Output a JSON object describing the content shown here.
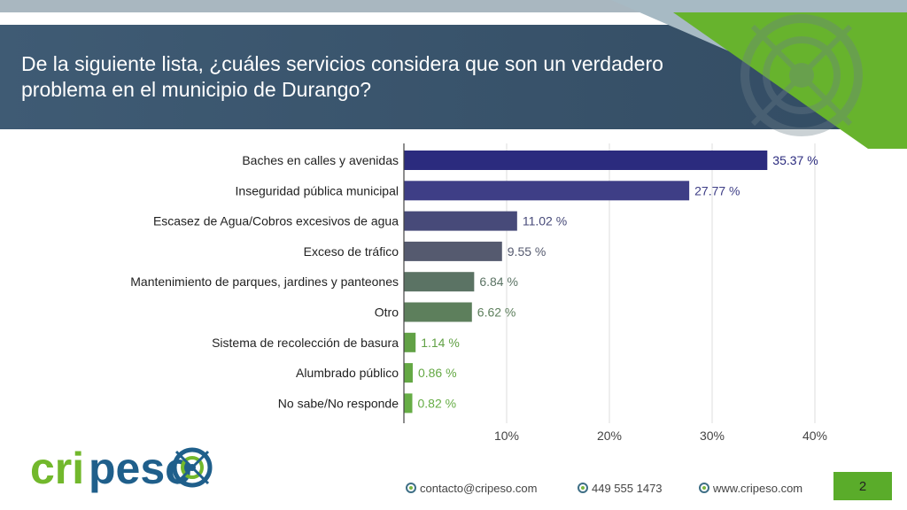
{
  "slide": {
    "title": "De la siguiente lista, ¿cuáles servicios considera que son un verdadero problema en el municipio de Durango?",
    "page_number": "2"
  },
  "footer": {
    "email": "contacto@cripeso.com",
    "phone": "449 555 1473",
    "website": "www.cripeso.com"
  },
  "logo": {
    "text_green": "cri",
    "text_blue": "peso",
    "icon": "target-crosshair-icon"
  },
  "colors": {
    "title_band": "#3a556d",
    "accent_green": "#5aac2a",
    "brand_blue": "#1f5f8b"
  },
  "chart_data": {
    "type": "bar",
    "orientation": "horizontal",
    "categories": [
      "Baches en calles y avenidas",
      "Inseguridad pública municipal",
      "Escasez de Agua/Cobros excesivos de agua",
      "Exceso de tráfico",
      "Mantenimiento de parques, jardines y panteones",
      "Otro",
      "Sistema de recolección de basura",
      "Alumbrado público",
      "No sabe/No responde"
    ],
    "values": [
      35.37,
      27.77,
      11.02,
      9.55,
      6.84,
      6.62,
      1.14,
      0.86,
      0.82
    ],
    "data_labels": [
      "35.37 %",
      "27.77 %",
      "11.02 %",
      "9.55 %",
      "6.84 %",
      "6.62 %",
      "1.14 %",
      "0.86 %",
      "0.82 %"
    ],
    "bar_colors": [
      "#2b2b7e",
      "#3e3e86",
      "#474a79",
      "#555a6f",
      "#5b7364",
      "#5d7f5c",
      "#61a145",
      "#64a844",
      "#66ad45"
    ],
    "label_colors": [
      "#2b2b7e",
      "#3e3e86",
      "#474a79",
      "#555a6f",
      "#5b7364",
      "#5d7f5c",
      "#61a145",
      "#64a844",
      "#66ad45"
    ],
    "xticks": [
      "10%",
      "20%",
      "30%",
      "40%"
    ],
    "xtick_values": [
      10,
      20,
      30,
      40
    ],
    "xlim": [
      0,
      40
    ],
    "grid": true
  }
}
